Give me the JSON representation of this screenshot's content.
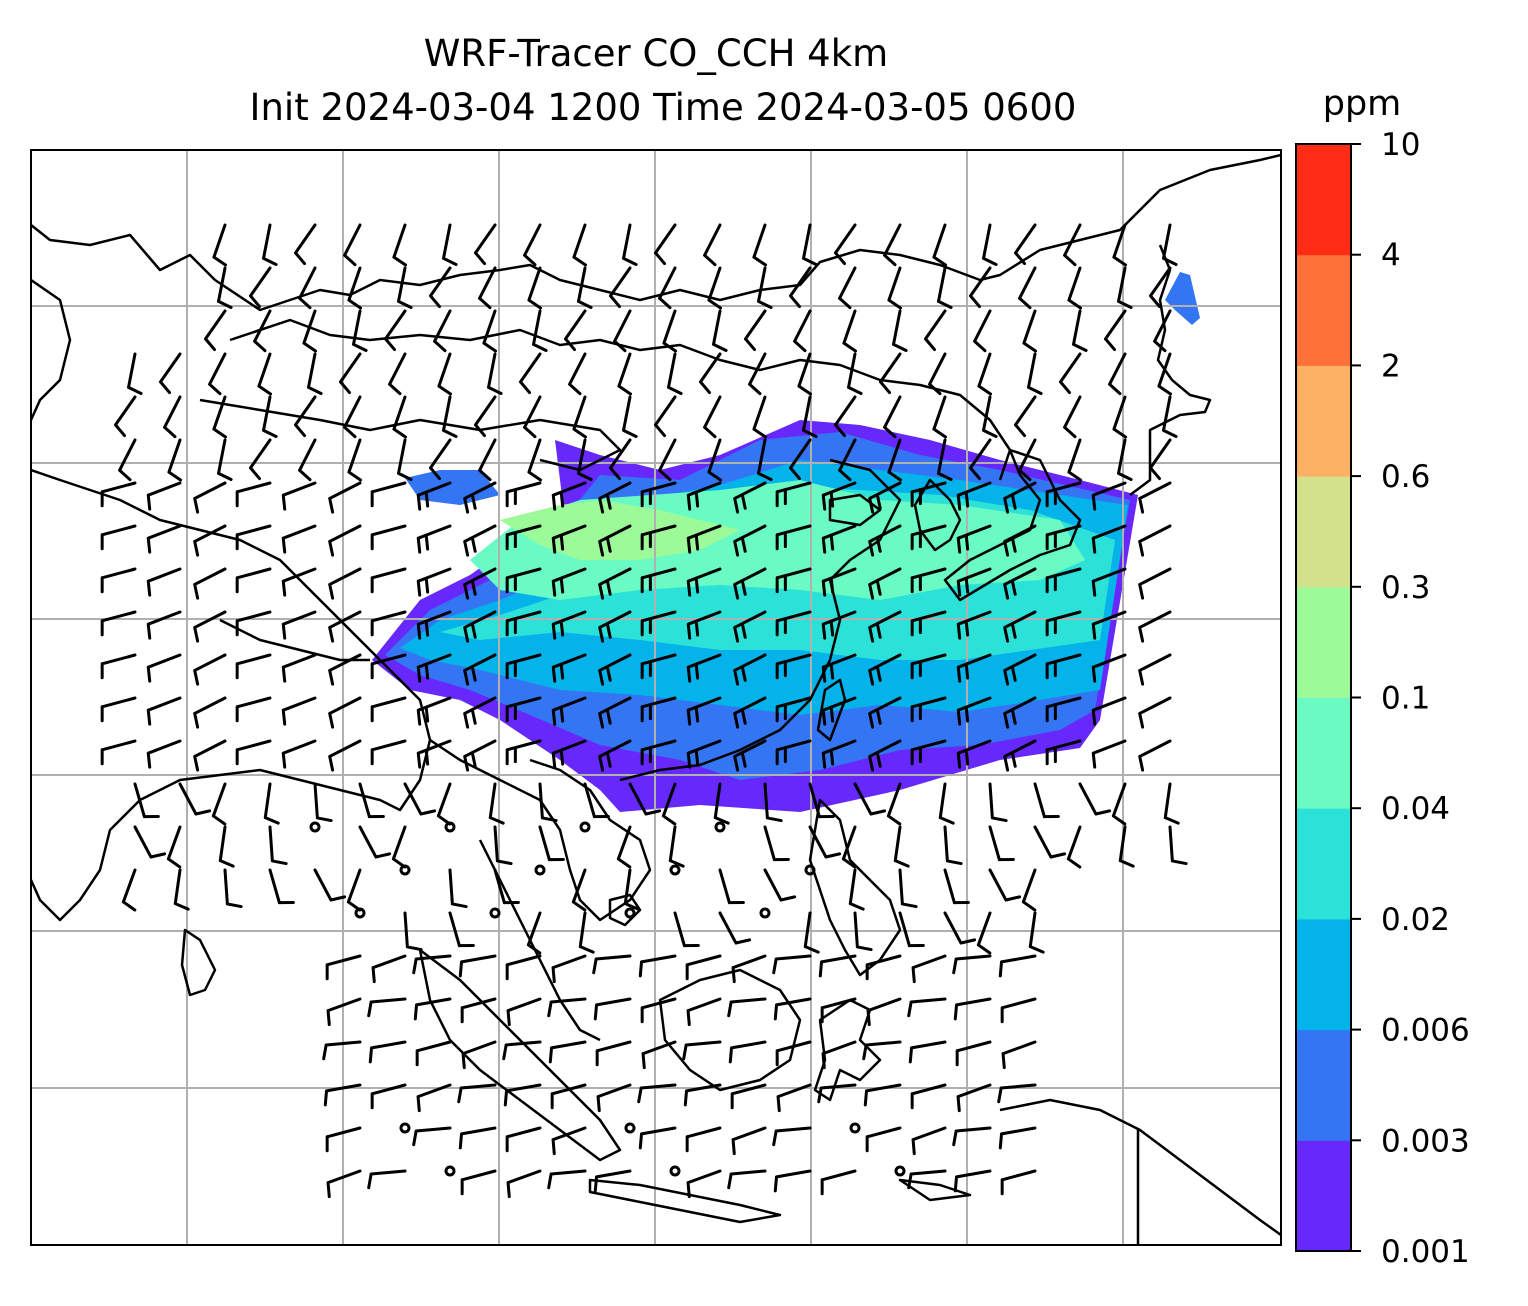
{
  "title": {
    "line1": "WRF-Tracer CO_CCH 4km",
    "line2": "Init 2024-03-04 1200 Time 2024-03-05 0600"
  },
  "colorbar": {
    "unit": "ppm",
    "levels": [
      "0.001",
      "0.003",
      "0.006",
      "0.02",
      "0.04",
      "0.1",
      "0.3",
      "0.6",
      "2",
      "4",
      "10"
    ],
    "colors": [
      "#6628fb",
      "#3475f3",
      "#04b3e9",
      "#2ce2d8",
      "#69fbc3",
      "#9cfa98",
      "#d3e18a",
      "#fdb164",
      "#fe7138",
      "#fe2c15"
    ]
  },
  "map": {
    "grid": true,
    "coastline_color": "#000000",
    "wind_barbs": true,
    "tracer_field": "CO_CCH"
  }
}
